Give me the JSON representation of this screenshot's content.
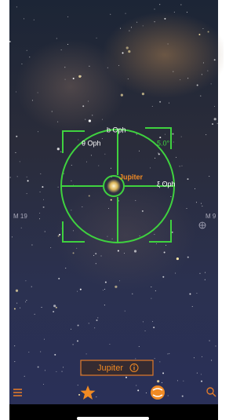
{
  "sky_labels": {
    "b_oph": "b Oph",
    "theta_oph": "θ Oph",
    "fov": "5.0°",
    "target": "Jupiter",
    "xi_oph": "ξ Oph",
    "m19": "M 19",
    "m9": "M 9"
  },
  "selection_button": {
    "label": "Jupiter"
  }
}
